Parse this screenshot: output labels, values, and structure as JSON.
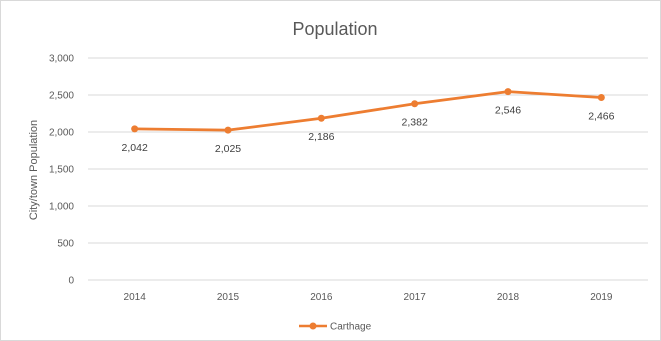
{
  "chart_data": {
    "type": "line",
    "title": "Population",
    "xlabel": "",
    "ylabel": "City/town Population",
    "categories": [
      "2014",
      "2015",
      "2016",
      "2017",
      "2018",
      "2019"
    ],
    "series": [
      {
        "name": "Carthage",
        "values": [
          2042,
          2025,
          2186,
          2382,
          2546,
          2466
        ],
        "labels": [
          "2,042",
          "2,025",
          "2,186",
          "2,382",
          "2,546",
          "2,466"
        ],
        "color": "#ED7D31"
      }
    ],
    "ylim": [
      0,
      3000
    ],
    "yticks": [
      0,
      500,
      1000,
      1500,
      2000,
      2500,
      3000
    ],
    "ytick_labels": [
      "0",
      "500",
      "1,000",
      "1,500",
      "2,000",
      "2,500",
      "3,000"
    ],
    "grid": true,
    "legend_position": "bottom",
    "gridline_color": "#d9d9d9"
  }
}
